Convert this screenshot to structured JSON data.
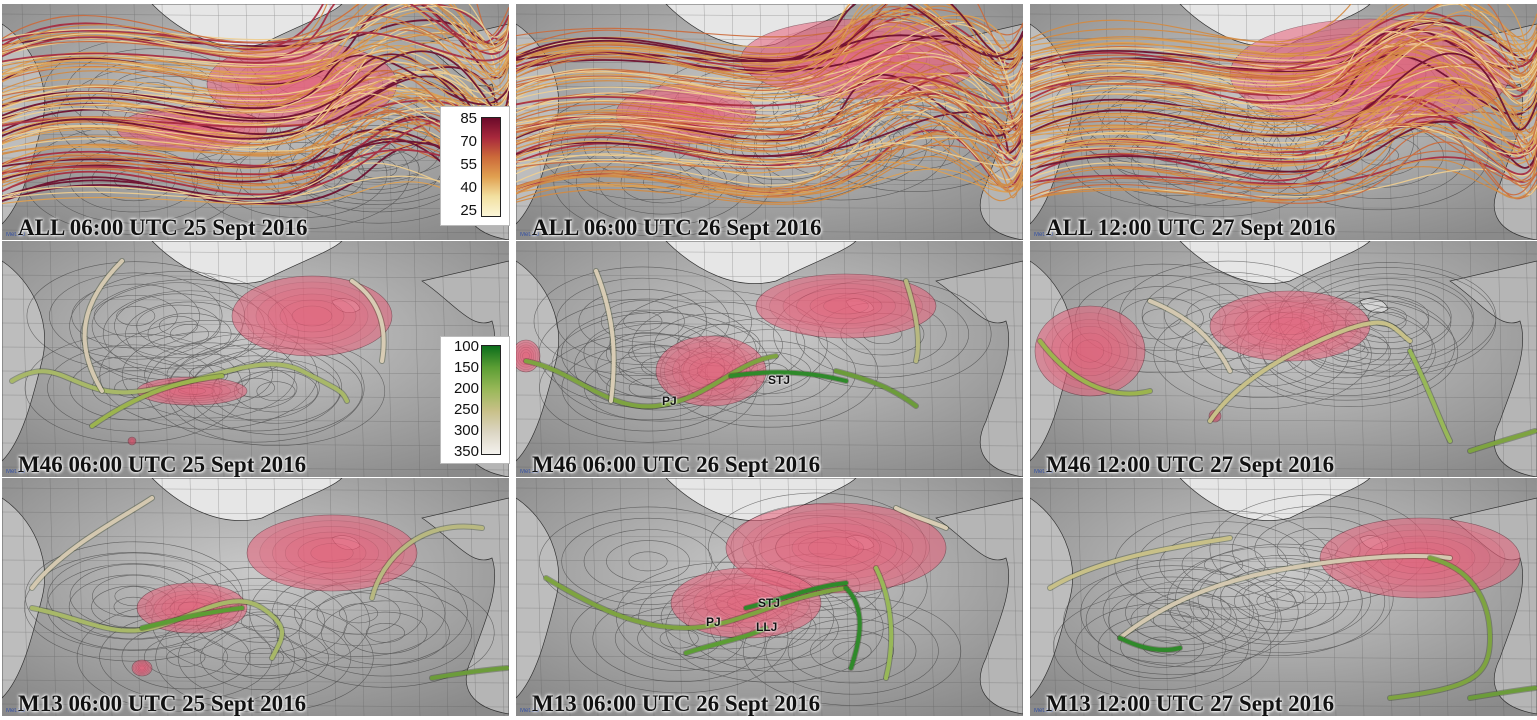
{
  "panels": [
    {
      "id": "p00",
      "label": "ALL 06:00 UTC 25 Sept 2016",
      "type": "all"
    },
    {
      "id": "p01",
      "label": "ALL 06:00 UTC 26 Sept 2016",
      "type": "all"
    },
    {
      "id": "p02",
      "label": "ALL 12:00 UTC 27 Sept 2016",
      "type": "all"
    },
    {
      "id": "p10",
      "label": "M46 06:00 UTC 25 Sept 2016",
      "type": "member"
    },
    {
      "id": "p11",
      "label": "M46 06:00 UTC 26 Sept 2016",
      "type": "member"
    },
    {
      "id": "p12",
      "label": "M46 12:00 UTC 27 Sept 2016",
      "type": "member"
    },
    {
      "id": "p20",
      "label": "M13 06:00 UTC 25 Sept 2016",
      "type": "member"
    },
    {
      "id": "p21",
      "label": "M13 06:00 UTC 26 Sept 2016",
      "type": "member"
    },
    {
      "id": "p22",
      "label": "M13 12:00 UTC 27 Sept 2016",
      "type": "member"
    }
  ],
  "legend_speed": {
    "ticks": [
      "85",
      "70",
      "55",
      "40",
      "25"
    ],
    "colors": [
      "#6b0a2a",
      "#a8283c",
      "#cc6a3a",
      "#e0a050",
      "#f2e0a0",
      "#fbf6d8"
    ]
  },
  "legend_pressure": {
    "ticks": [
      "100",
      "150",
      "200",
      "250",
      "300",
      "350"
    ],
    "colors": [
      "#0c6e1c",
      "#5c9e34",
      "#98b858",
      "#c8c088",
      "#dcd6c4",
      "#f4f2ee"
    ]
  },
  "jet_labels": {
    "m46_26": {
      "pj": "PJ",
      "stj": "STJ"
    },
    "m13_26": {
      "pj": "PJ",
      "stj": "STJ",
      "llj": "LLJ"
    }
  },
  "credit": "Met.3D"
}
